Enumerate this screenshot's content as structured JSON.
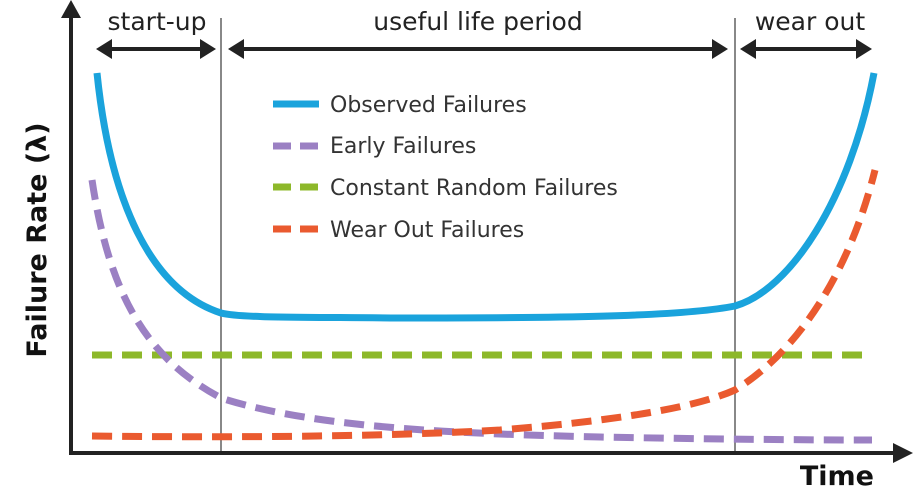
{
  "axes": {
    "y_title": "Failure Rate (λ)",
    "x_title": "Time"
  },
  "phases": [
    {
      "label": "start-up"
    },
    {
      "label": "useful life period"
    },
    {
      "label": "wear out"
    }
  ],
  "legend": [
    {
      "label": "Observed Failures",
      "style": "solid",
      "color": "#1aa3dc"
    },
    {
      "label": "Early Failures",
      "style": "dashed",
      "color": "#9b80c3"
    },
    {
      "label": "Constant Random Failures",
      "style": "dashed",
      "color": "#8db82a"
    },
    {
      "label": "Wear Out Failures",
      "style": "dashed",
      "color": "#ea5a2f"
    }
  ],
  "colors": {
    "axis": "#222222",
    "divider": "#888888",
    "observed": "#1aa3dc",
    "early": "#9b80c3",
    "constant": "#8db82a",
    "wearout": "#ea5a2f"
  }
}
